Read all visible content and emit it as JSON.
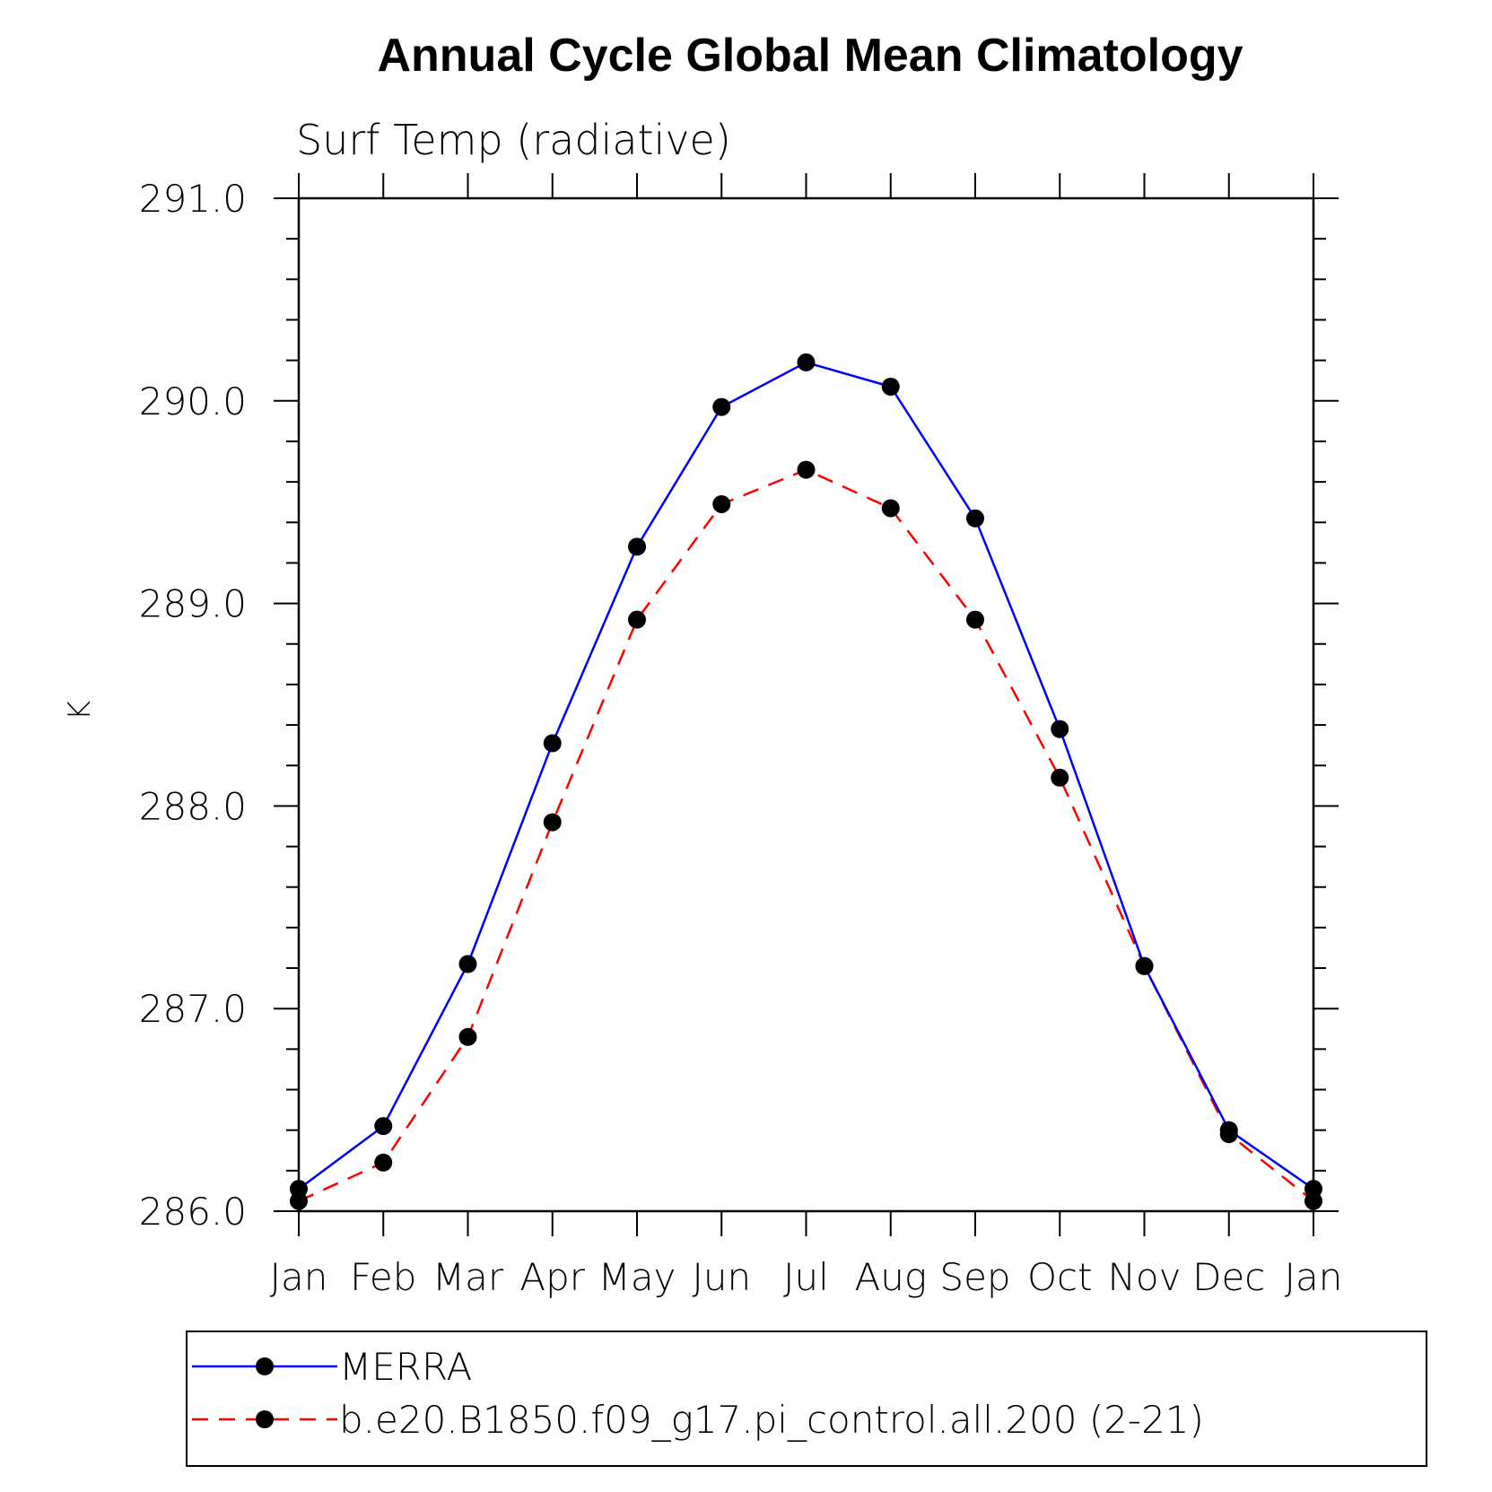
{
  "chart_data": {
    "type": "line",
    "title": "Annual Cycle Global Mean Climatology",
    "subtitle": "Surf Temp (radiative)",
    "xlabel": "",
    "ylabel": "K",
    "categories": [
      "Jan",
      "Feb",
      "Mar",
      "Apr",
      "May",
      "Jun",
      "Jul",
      "Aug",
      "Sep",
      "Oct",
      "Nov",
      "Dec",
      "Jan"
    ],
    "ylim": [
      286.0,
      291.0
    ],
    "yticks": [
      286.0,
      287.0,
      288.0,
      289.0,
      290.0,
      291.0
    ],
    "ytick_labels": [
      "286.0",
      "287.0",
      "288.0",
      "289.0",
      "290.0",
      "291.0"
    ],
    "y_minor_step": 0.2,
    "grid": false,
    "legend_position": "bottom",
    "series": [
      {
        "name": "MERRA",
        "color": "#0000ff",
        "dash": "solid",
        "marker": "filled-circle",
        "values": [
          286.11,
          286.42,
          287.22,
          288.31,
          289.28,
          289.97,
          290.19,
          290.07,
          289.42,
          288.38,
          287.21,
          286.4,
          286.11
        ]
      },
      {
        "name": "b.e20.B1850.f09_g17.pi_control.all.200 (2-21)",
        "color": "#ff0000",
        "dash": "dashed",
        "marker": "filled-circle",
        "values": [
          286.05,
          286.24,
          286.86,
          287.92,
          288.92,
          289.49,
          289.66,
          289.47,
          288.92,
          288.14,
          287.21,
          286.38,
          286.05
        ]
      }
    ]
  }
}
